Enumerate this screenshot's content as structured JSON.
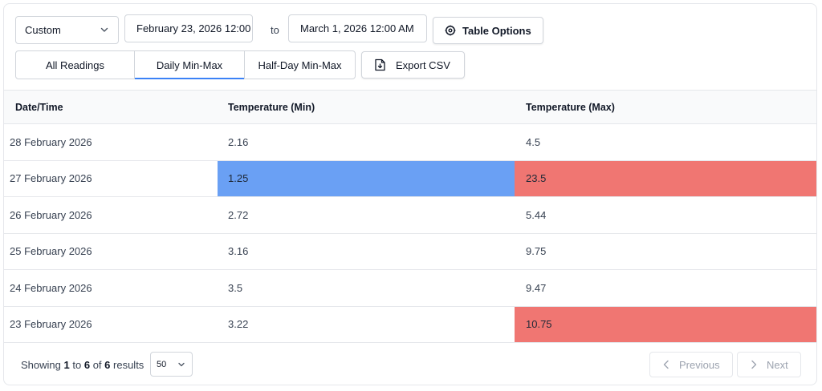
{
  "filters": {
    "range_select": "Custom",
    "date_from": "February 23, 2026 12:00 AM",
    "to_label": "to",
    "date_to": "March 1, 2026 12:00 AM",
    "table_options_label": "Table Options"
  },
  "tabs": [
    {
      "label": "All Readings",
      "active": false
    },
    {
      "label": "Daily Min-Max",
      "active": true
    },
    {
      "label": "Half-Day Min-Max",
      "active": false
    }
  ],
  "export_label": "Export CSV",
  "table": {
    "headers": [
      "Date/Time",
      "Temperature (Min)",
      "Temperature (Max)"
    ],
    "rows": [
      {
        "date": "28 February 2026",
        "min": "2.16",
        "max": "4.5",
        "min_flag": "",
        "max_flag": ""
      },
      {
        "date": "27 February 2026",
        "min": "1.25",
        "max": "23.5",
        "min_flag": "low",
        "max_flag": "high"
      },
      {
        "date": "26 February 2026",
        "min": "2.72",
        "max": "5.44",
        "min_flag": "",
        "max_flag": ""
      },
      {
        "date": "25 February 2026",
        "min": "3.16",
        "max": "9.75",
        "min_flag": "",
        "max_flag": ""
      },
      {
        "date": "24 February 2026",
        "min": "3.5",
        "max": "9.47",
        "min_flag": "",
        "max_flag": ""
      },
      {
        "date": "23 February 2026",
        "min": "3.22",
        "max": "10.75",
        "min_flag": "",
        "max_flag": "high"
      }
    ]
  },
  "footer": {
    "showing_prefix": "Showing",
    "from": "1",
    "to_word": "to",
    "to": "6",
    "of_word": "of",
    "total": "6",
    "results_word": "results",
    "page_size": "50",
    "previous_label": "Previous",
    "next_label": "Next"
  },
  "colors": {
    "accent": "#3b82f6",
    "low_highlight": "#6aa0f4",
    "high_highlight": "#f07672"
  },
  "icons": {
    "range_select": "chevron-down-icon",
    "table_options": "gear-icon",
    "export": "file-download-icon",
    "previous": "chevron-left-icon",
    "next": "chevron-right-icon"
  }
}
